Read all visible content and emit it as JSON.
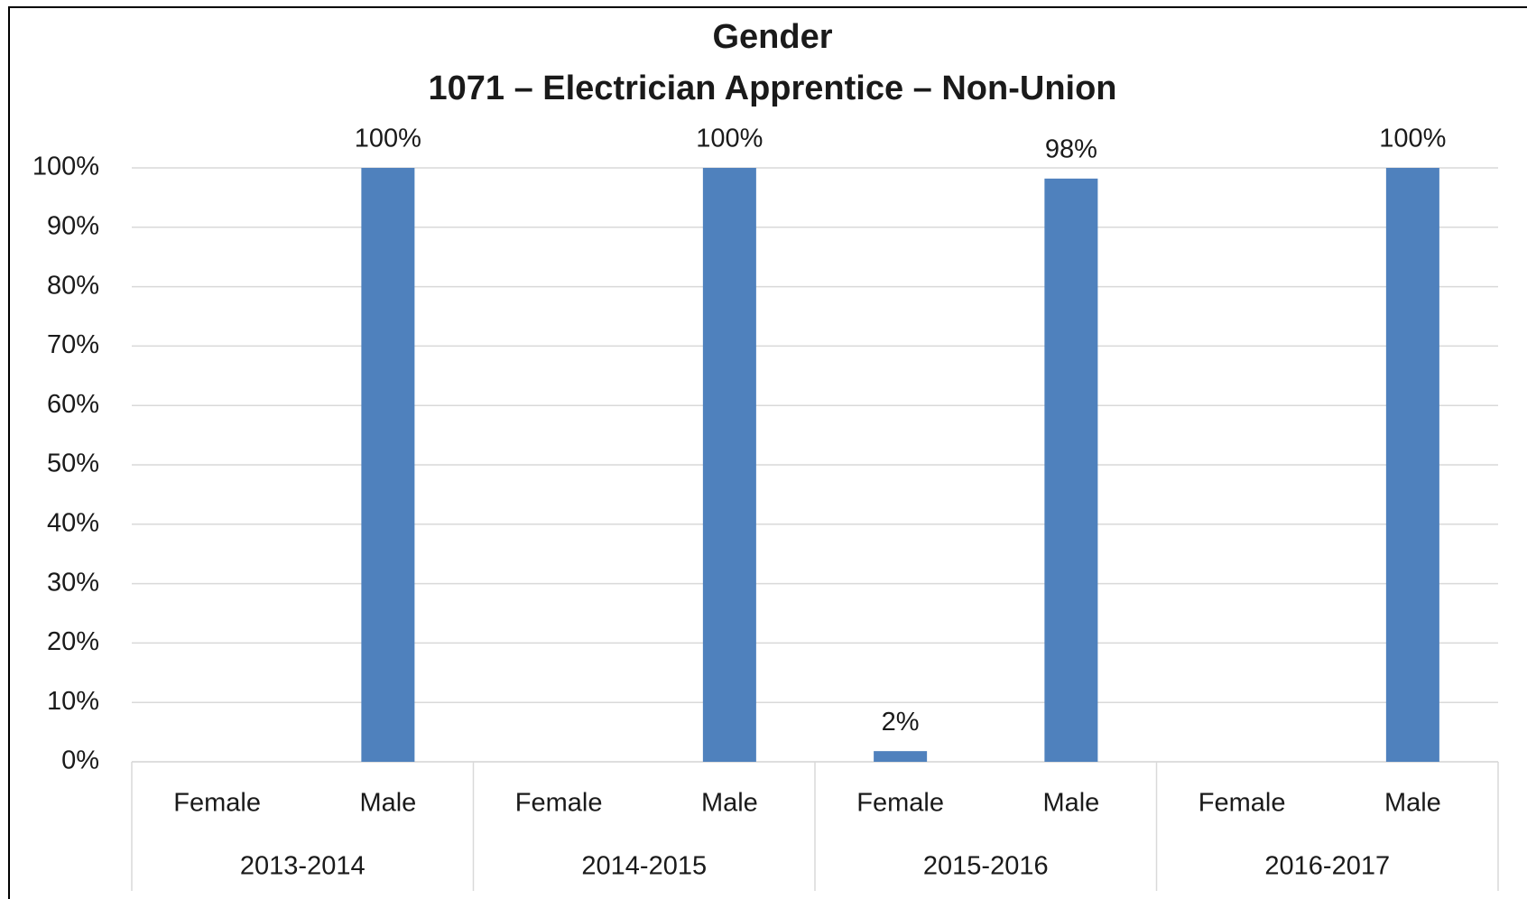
{
  "chart_data": {
    "type": "bar",
    "title": "Gender",
    "subtitle": "1071 – Electrician Apprentice – Non-Union",
    "categories": [
      "Female",
      "Male",
      "Female",
      "Male",
      "Female",
      "Male",
      "Female",
      "Male"
    ],
    "groups": [
      "2013-2014",
      "2014-2015",
      "2015-2016",
      "2016-2017"
    ],
    "values": [
      null,
      100,
      null,
      100,
      1.8,
      98.2,
      null,
      100
    ],
    "value_labels": [
      null,
      "100%",
      null,
      "100%",
      "2%",
      "98%",
      null,
      "100%"
    ],
    "color": "#4f81bd",
    "ylim": [
      0,
      100
    ],
    "yticks": [
      {
        "value": 0,
        "label": "0%"
      },
      {
        "value": 10,
        "label": "10%"
      },
      {
        "value": 20,
        "label": "20%"
      },
      {
        "value": 30,
        "label": "30%"
      },
      {
        "value": 40,
        "label": "40%"
      },
      {
        "value": 50,
        "label": "50%"
      },
      {
        "value": 60,
        "label": "60%"
      },
      {
        "value": 70,
        "label": "70%"
      },
      {
        "value": 80,
        "label": "80%"
      },
      {
        "value": 90,
        "label": "90%"
      },
      {
        "value": 100,
        "label": "100%"
      }
    ],
    "grid": true
  }
}
